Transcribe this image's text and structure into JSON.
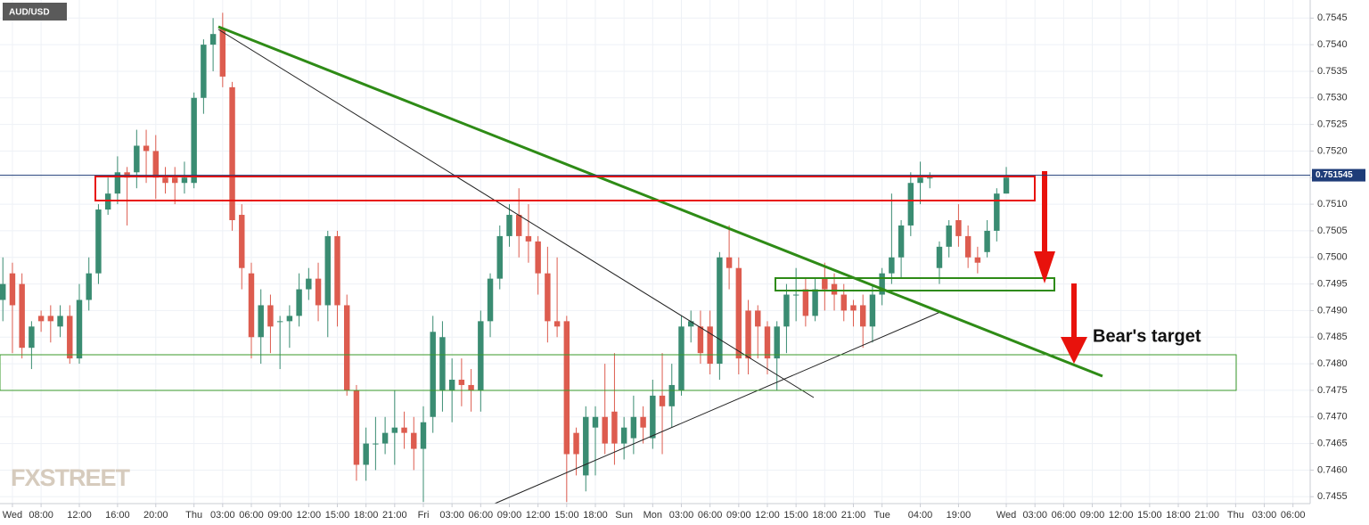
{
  "chart_data": {
    "type": "candlestick",
    "title": "AUD/USD",
    "watermark": "FXSTREET",
    "annotation": "Bear's target",
    "up_color": "#3a8c72",
    "down_color": "#dd5c4f",
    "grid": true,
    "xlim": [
      -0.3,
      136.8
    ],
    "ylim": [
      0.74537,
      0.75484
    ],
    "yticks": [
      0.7455,
      {
        "value": 0.746,
        "label": "0.7460"
      },
      0.7465,
      {
        "value": 0.747,
        "label": "0.7470"
      },
      0.7475,
      {
        "value": 0.748,
        "label": "0.7480"
      },
      0.7485,
      {
        "value": 0.749,
        "label": "0.7490"
      },
      0.7495,
      {
        "value": 0.75,
        "label": "0.7500"
      },
      0.7505,
      {
        "value": 0.751,
        "label": "0.7510"
      },
      0.7515,
      {
        "value": 0.752,
        "label": "0.7520"
      },
      0.7525,
      {
        "value": 0.753,
        "label": "0.7530"
      },
      0.7535,
      {
        "value": 0.754,
        "label": "0.7540"
      },
      0.7545
    ],
    "xticks": [
      {
        "value": 1,
        "label": "Wed"
      },
      {
        "value": 4,
        "label": "08:00"
      },
      {
        "value": 8,
        "label": "12:00"
      },
      {
        "value": 12,
        "label": "16:00"
      },
      {
        "value": 16,
        "label": "20:00"
      },
      {
        "value": 20,
        "label": "Thu"
      },
      {
        "value": 23,
        "label": "03:00"
      },
      {
        "value": 26,
        "label": "06:00"
      },
      {
        "value": 29,
        "label": "09:00"
      },
      {
        "value": 32,
        "label": "12:00"
      },
      {
        "value": 35,
        "label": "15:00"
      },
      {
        "value": 38,
        "label": "18:00"
      },
      {
        "value": 41,
        "label": "21:00"
      },
      {
        "value": 44,
        "label": "Fri"
      },
      {
        "value": 47,
        "label": "03:00"
      },
      {
        "value": 50,
        "label": "06:00"
      },
      {
        "value": 53,
        "label": "09:00"
      },
      {
        "value": 56,
        "label": "12:00"
      },
      {
        "value": 59,
        "label": "15:00"
      },
      {
        "value": 62,
        "label": "18:00"
      },
      {
        "value": 65,
        "label": "Sun"
      },
      {
        "value": 68,
        "label": "Mon"
      },
      {
        "value": 71,
        "label": "03:00"
      },
      {
        "value": 74,
        "label": "06:00"
      },
      {
        "value": 77,
        "label": "09:00"
      },
      {
        "value": 80,
        "label": "12:00"
      },
      {
        "value": 83,
        "label": "15:00"
      },
      {
        "value": 86,
        "label": "18:00"
      },
      {
        "value": 89,
        "label": "21:00"
      },
      {
        "value": 92,
        "label": "Tue"
      },
      {
        "value": 96,
        "label": "04:00"
      },
      {
        "value": 100,
        "label": "19:00"
      },
      {
        "value": 105,
        "label": "Wed"
      },
      {
        "value": 108,
        "label": "03:00"
      },
      {
        "value": 111,
        "label": "06:00"
      },
      {
        "value": 114,
        "label": "09:00"
      },
      {
        "value": 117,
        "label": "12:00"
      },
      {
        "value": 120,
        "label": "15:00"
      },
      {
        "value": 123,
        "label": "18:00"
      },
      {
        "value": 126,
        "label": "21:00"
      },
      {
        "value": 129,
        "label": "Thu"
      },
      {
        "value": 132,
        "label": "03:00"
      },
      {
        "value": 135,
        "label": "06:00"
      }
    ],
    "last_price": {
      "value": 0.751545,
      "label": "0.751545"
    },
    "x": [
      0,
      1,
      2,
      3,
      4,
      5,
      6,
      7,
      8,
      9,
      10,
      11,
      12,
      13,
      14,
      15,
      16,
      17,
      18,
      19,
      20,
      21,
      22,
      23,
      24,
      25,
      26,
      27,
      28,
      29,
      30,
      31,
      32,
      33,
      34,
      35,
      36,
      37,
      38,
      39,
      40,
      41,
      42,
      43,
      44,
      45,
      46,
      47,
      48,
      49,
      50,
      51,
      52,
      53,
      54,
      55,
      56,
      57,
      58,
      59,
      60,
      61,
      62,
      63,
      64,
      65,
      66,
      67,
      68,
      69,
      70,
      71,
      72,
      73,
      74,
      75,
      76,
      77,
      78,
      79,
      80,
      81,
      82,
      83,
      84,
      85,
      86,
      87,
      88,
      89,
      90,
      91,
      92,
      93,
      94,
      95,
      96,
      97,
      98,
      99,
      100,
      101,
      102,
      103,
      104,
      105
    ],
    "open": [
      0.7492,
      0.7497,
      0.7495,
      0.7483,
      0.7489,
      0.7489,
      0.7487,
      0.7489,
      0.7481,
      0.7492,
      0.7497,
      0.7509,
      0.7512,
      0.7516,
      0.7516,
      0.7521,
      0.752,
      0.7515,
      0.7515,
      0.7514,
      0.7514,
      0.753,
      0.754,
      0.7543,
      0.7532,
      0.7508,
      0.7497,
      0.7485,
      0.7491,
      0.7488,
      0.7488,
      0.7489,
      0.7494,
      0.7496,
      0.7491,
      0.7504,
      0.7491,
      0.7475,
      0.7461,
      0.7465,
      0.7465,
      0.7467,
      0.7468,
      0.7467,
      0.7464,
      0.747,
      0.7475,
      0.7475,
      0.7477,
      0.7476,
      0.7475,
      0.7488,
      0.7496,
      0.7504,
      0.7508,
      0.7504,
      0.7503,
      0.7497,
      0.7488,
      0.7488,
      0.7467,
      0.7459,
      0.7468,
      0.747,
      0.7471,
      0.7465,
      0.7466,
      0.747,
      0.7466,
      0.7474,
      0.7472,
      0.7475,
      0.7487,
      0.7487,
      0.7487,
      0.748,
      0.75,
      0.7498,
      0.749,
      0.749,
      0.7487,
      0.7481,
      0.7487,
      0.7493,
      0.7494,
      0.7489,
      0.7496,
      0.7495,
      0.7493,
      0.7491,
      0.7491,
      0.7487,
      0.7493,
      0.7497,
      0.75,
      0.7506,
      0.7514,
      0.7515,
      0.7498,
      0.7502,
      0.7507,
      0.7504,
      0.75,
      0.7501,
      0.7505,
      0.7512
    ],
    "high": [
      0.75,
      0.7499,
      0.7497,
      0.7488,
      0.749,
      0.7491,
      0.7491,
      0.7491,
      0.7495,
      0.75,
      0.751,
      0.7515,
      0.7519,
      0.7517,
      0.7524,
      0.7524,
      0.7523,
      0.7517,
      0.7517,
      0.7518,
      0.7531,
      0.7541,
      0.7545,
      0.7546,
      0.7533,
      0.751,
      0.7499,
      0.7494,
      0.7493,
      0.7489,
      0.7491,
      0.7497,
      0.7498,
      0.7499,
      0.7505,
      0.7505,
      0.7493,
      0.7476,
      0.7468,
      0.747,
      0.747,
      0.7475,
      0.7471,
      0.747,
      0.7472,
      0.7489,
      0.7488,
      0.7481,
      0.7481,
      0.7479,
      0.749,
      0.7497,
      0.7506,
      0.751,
      0.7513,
      0.751,
      0.7504,
      0.7502,
      0.75,
      0.7489,
      0.7468,
      0.7472,
      0.7472,
      0.748,
      0.7482,
      0.747,
      0.7474,
      0.7472,
      0.7477,
      0.7482,
      0.748,
      0.7489,
      0.749,
      0.749,
      0.749,
      0.7501,
      0.7506,
      0.75,
      0.7492,
      0.7491,
      0.7488,
      0.7488,
      0.7495,
      0.7498,
      0.7496,
      0.7496,
      0.7499,
      0.7497,
      0.7495,
      0.7492,
      0.7493,
      0.7495,
      0.7498,
      0.7512,
      0.7507,
      0.7516,
      0.7518,
      0.7516,
      0.7503,
      0.7507,
      0.751,
      0.7506,
      0.7502,
      0.7507,
      0.7513,
      0.7517
    ],
    "low": [
      0.7488,
      0.7482,
      0.7481,
      0.7479,
      0.7486,
      0.7484,
      0.7485,
      0.748,
      0.748,
      0.749,
      0.7495,
      0.7508,
      0.751,
      0.7506,
      0.7513,
      0.7514,
      0.7511,
      0.7512,
      0.751,
      0.7512,
      0.7513,
      0.7527,
      0.7535,
      0.7532,
      0.7505,
      0.7494,
      0.7481,
      0.748,
      0.7482,
      0.7479,
      0.7483,
      0.7487,
      0.7492,
      0.7488,
      0.7485,
      0.7487,
      0.7474,
      0.7458,
      0.7458,
      0.746,
      0.7463,
      0.7461,
      0.7464,
      0.746,
      0.7454,
      0.7467,
      0.7471,
      0.7469,
      0.7472,
      0.7471,
      0.7471,
      0.7485,
      0.7494,
      0.7502,
      0.75,
      0.7499,
      0.7493,
      0.7484,
      0.7485,
      0.7454,
      0.7459,
      0.7456,
      0.7459,
      0.7463,
      0.7461,
      0.7462,
      0.7463,
      0.7465,
      0.7464,
      0.7463,
      0.7468,
      0.7474,
      0.7484,
      0.748,
      0.7478,
      0.7477,
      0.7494,
      0.7478,
      0.7478,
      0.7481,
      0.7478,
      0.7475,
      0.7482,
      0.7488,
      0.7487,
      0.7488,
      0.749,
      0.749,
      0.7488,
      0.7487,
      0.7483,
      0.7484,
      0.7491,
      0.7495,
      0.7496,
      0.7504,
      0.751,
      0.7513,
      0.7495,
      0.75,
      0.7502,
      0.7498,
      0.7497,
      0.75,
      0.7503,
      0.7512
    ],
    "close": [
      0.7495,
      0.7491,
      0.7483,
      0.7487,
      0.7488,
      0.7488,
      0.7489,
      0.7481,
      0.7492,
      0.7497,
      0.7509,
      0.7512,
      0.7516,
      0.7515,
      0.7521,
      0.752,
      0.7515,
      0.7514,
      0.7514,
      0.7515,
      0.753,
      0.754,
      0.7542,
      0.7534,
      0.7507,
      0.7498,
      0.7485,
      0.7491,
      0.7487,
      0.7488,
      0.7489,
      0.7494,
      0.7496,
      0.7491,
      0.7504,
      0.7491,
      0.7475,
      0.7461,
      0.7465,
      0.7465,
      0.7467,
      0.7468,
      0.7467,
      0.7464,
      0.7469,
      0.7486,
      0.7485,
      0.7477,
      0.7476,
      0.7475,
      0.7488,
      0.7496,
      0.7504,
      0.7508,
      0.7504,
      0.7503,
      0.7497,
      0.7488,
      0.7487,
      0.7463,
      0.7463,
      0.747,
      0.747,
      0.7465,
      0.7465,
      0.7468,
      0.747,
      0.7468,
      0.7474,
      0.7472,
      0.7476,
      0.7487,
      0.7488,
      0.7482,
      0.748,
      0.75,
      0.7498,
      0.7481,
      0.7481,
      0.7487,
      0.7481,
      0.7487,
      0.7493,
      0.7493,
      0.7489,
      0.7494,
      0.7494,
      0.7493,
      0.749,
      0.749,
      0.7487,
      0.7493,
      0.7497,
      0.75,
      0.7506,
      0.7514,
      0.7515,
      0.7515,
      0.7502,
      0.7506,
      0.7504,
      0.75,
      0.7499,
      0.7505,
      0.7512,
      0.7515
    ]
  }
}
